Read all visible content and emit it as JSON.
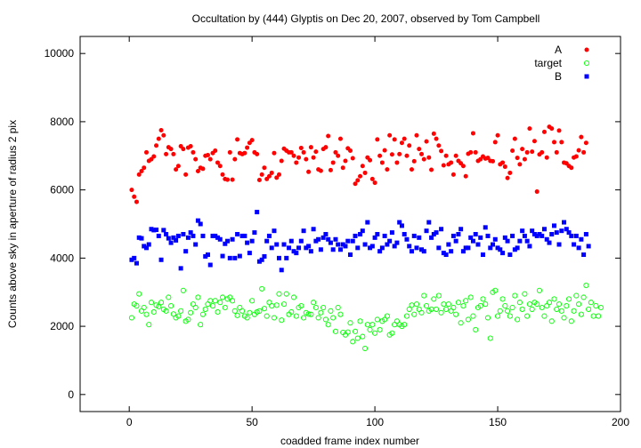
{
  "chart_data": {
    "type": "scatter",
    "title": "Occultation by (444) Glyptis on Dec 20, 2007, observed by Tom Campbell",
    "xlabel": "coadded frame index number",
    "ylabel": "Counts above sky in aperture of radius 2 pix",
    "xlim": [
      -20,
      200
    ],
    "ylim": [
      -500,
      10500
    ],
    "xticks": [
      0,
      50,
      100,
      150,
      200
    ],
    "yticks": [
      0,
      2000,
      4000,
      6000,
      8000,
      10000
    ],
    "grid": false,
    "legend_position": "top-right",
    "series": [
      {
        "name": "A",
        "color": "#ff0000",
        "marker": "filled-circle",
        "y": [
          6000,
          5800,
          5650,
          6450,
          6550,
          6650,
          7100,
          6850,
          6900,
          6980,
          7300,
          7500,
          7750,
          7600,
          7050,
          7250,
          7200,
          7050,
          6600,
          6700,
          7280,
          7200,
          6450,
          7240,
          7280,
          7100,
          6900,
          6550,
          6650,
          6620,
          7000,
          7020,
          6900,
          7080,
          7150,
          6800,
          6700,
          6450,
          6320,
          6300,
          7100,
          6300,
          6900,
          7480,
          7080,
          7050,
          7080,
          7240,
          7380,
          7460,
          7100,
          7050,
          6290,
          6450,
          6650,
          6320,
          6400,
          6500,
          7080,
          6360,
          6450,
          6850,
          7210,
          7150,
          7100,
          7100,
          7000,
          6800,
          6950,
          7230,
          7100,
          6900,
          6530,
          7250,
          6950,
          7120,
          6600,
          6560,
          7200,
          7250,
          7580,
          6580,
          6800,
          7100,
          7000,
          7500,
          6650,
          6850,
          7220,
          7150,
          6930,
          6180,
          6280,
          6400,
          6700,
          6500,
          6950,
          6870,
          6320,
          6210,
          7480,
          7000,
          6800,
          7160,
          6600,
          7600,
          7040,
          7480,
          6800,
          7050,
          7380,
          7500,
          7000,
          7300,
          6600,
          6840,
          7600,
          7200,
          7050,
          6900,
          7420,
          6950,
          6590,
          7650,
          7500,
          7300,
          7140,
          6720,
          7000,
          6750,
          6800,
          6450,
          7000,
          6850,
          6780,
          6700,
          6400,
          7060,
          7100,
          7660,
          7100,
          6850,
          6900,
          6980,
          6920,
          6940,
          6850,
          6840,
          7400,
          7600,
          6750,
          6800,
          6680,
          6350,
          6500,
          7150,
          7500,
          6940,
          6750,
          7200,
          6900,
          7100,
          7800,
          7120,
          7430,
          5950,
          7040,
          7100,
          7700,
          6950,
          7850,
          7800,
          7400,
          7100,
          7740,
          7400,
          6800,
          6780,
          6700,
          6650,
          6950,
          6980,
          7160,
          7550,
          7100,
          7380
        ]
      },
      {
        "name": "target",
        "color": "#00ff00",
        "marker": "open-circle",
        "y": [
          2250,
          2650,
          2600,
          2950,
          2450,
          2550,
          2350,
          2050,
          2700,
          2420,
          2620,
          2580,
          2700,
          2500,
          2450,
          2850,
          2600,
          2360,
          2250,
          2300,
          2450,
          3050,
          2150,
          2200,
          2400,
          2650,
          2550,
          2850,
          2050,
          2350,
          2500,
          2650,
          2750,
          2600,
          2750,
          2420,
          2700,
          2850,
          2550,
          2800,
          2850,
          2750,
          2450,
          2320,
          2550,
          2450,
          2300,
          2250,
          2400,
          2750,
          2350,
          2420,
          2450,
          3100,
          2520,
          2300,
          2700,
          2600,
          2250,
          2620,
          2950,
          2180,
          2650,
          2950,
          2350,
          2420,
          2850,
          2300,
          2550,
          2600,
          2250,
          2400,
          2360,
          2350,
          2700,
          2550,
          2250,
          2400,
          2550,
          2200,
          2050,
          2450,
          2250,
          1850,
          2550,
          2350,
          1820,
          1750,
          1830,
          2100,
          1550,
          1850,
          1650,
          2150,
          1700,
          1350,
          2050,
          1900,
          2050,
          1800,
          2200,
          1900,
          2150,
          2200,
          2300,
          1750,
          1800,
          2050,
          2150,
          2050,
          2000,
          2050,
          2300,
          2500,
          2620,
          2350,
          2650,
          2500,
          2400,
          2900,
          2600,
          2450,
          2500,
          2800,
          2500,
          2900,
          2400,
          2650,
          2500,
          2650,
          2450,
          2550,
          2350,
          2700,
          2100,
          2600,
          2750,
          2200,
          2850,
          2300,
          1900,
          2550,
          2600,
          2800,
          2650,
          2250,
          1650,
          3000,
          3050,
          2300,
          2450,
          2800,
          2600,
          2450,
          2300,
          2550,
          2900,
          2200,
          2700,
          2500,
          2950,
          2300,
          2650,
          2500,
          2700,
          2650,
          3050,
          2550,
          2300,
          2600,
          2700,
          2150,
          2800,
          2500,
          2650,
          2450,
          2250,
          2600,
          2800,
          2150,
          2450,
          2900,
          2650,
          2350,
          2850,
          3200,
          2500,
          2700,
          2300,
          2600,
          2300,
          2550
        ]
      },
      {
        "name": "B",
        "color": "#0000ff",
        "marker": "filled-square",
        "y": [
          3950,
          4000,
          3850,
          4600,
          4580,
          4350,
          4300,
          4400,
          4850,
          4820,
          4830,
          4650,
          3950,
          4820,
          4700,
          4580,
          4450,
          4600,
          4520,
          4650,
          3700,
          4700,
          4200,
          4600,
          4750,
          4650,
          4400,
          5100,
          5000,
          4650,
          4050,
          4100,
          3800,
          4650,
          4650,
          4600,
          4550,
          4060,
          4420,
          4500,
          4000,
          4550,
          4000,
          4700,
          4060,
          4650,
          4650,
          4450,
          4150,
          4500,
          4750,
          5350,
          3900,
          3950,
          4050,
          4500,
          4650,
          4300,
          4800,
          4400,
          4000,
          3650,
          4400,
          4000,
          4300,
          4500,
          4200,
          4150,
          4300,
          4500,
          4800,
          4300,
          4350,
          4200,
          4850,
          4500,
          4550,
          4250,
          4600,
          4700,
          4550,
          4450,
          4250,
          4550,
          4400,
          4250,
          4400,
          4350,
          4500,
          4100,
          4500,
          4650,
          4300,
          4700,
          4800,
          4400,
          5050,
          4300,
          4350,
          4600,
          4700,
          4200,
          4300,
          4650,
          4400,
          4500,
          4750,
          4350,
          4450,
          5050,
          4950,
          4700,
          4550,
          4350,
          4200,
          4650,
          4300,
          4600,
          4250,
          4200,
          4800,
          5050,
          4600,
          4700,
          4750,
          4300,
          4850,
          4150,
          4100,
          4400,
          4200,
          4650,
          4500,
          4700,
          4850,
          4200,
          4300,
          4300,
          4600,
          4500,
          4700,
          4400,
          4600,
          4100,
          4900,
          4650,
          4300,
          4400,
          4550,
          4300,
          4250,
          4150,
          4600,
          4500,
          4100,
          4650,
          4250,
          4300,
          4500,
          4800,
          4650,
          4500,
          4350,
          4800,
          4700,
          4650,
          4700,
          4650,
          4850,
          4550,
          4450,
          4700,
          4950,
          4750,
          4400,
          4800,
          5050,
          4850,
          4750,
          4650,
          4400,
          4650,
          4300,
          4550,
          4100,
          4700,
          4350
        ]
      }
    ]
  }
}
